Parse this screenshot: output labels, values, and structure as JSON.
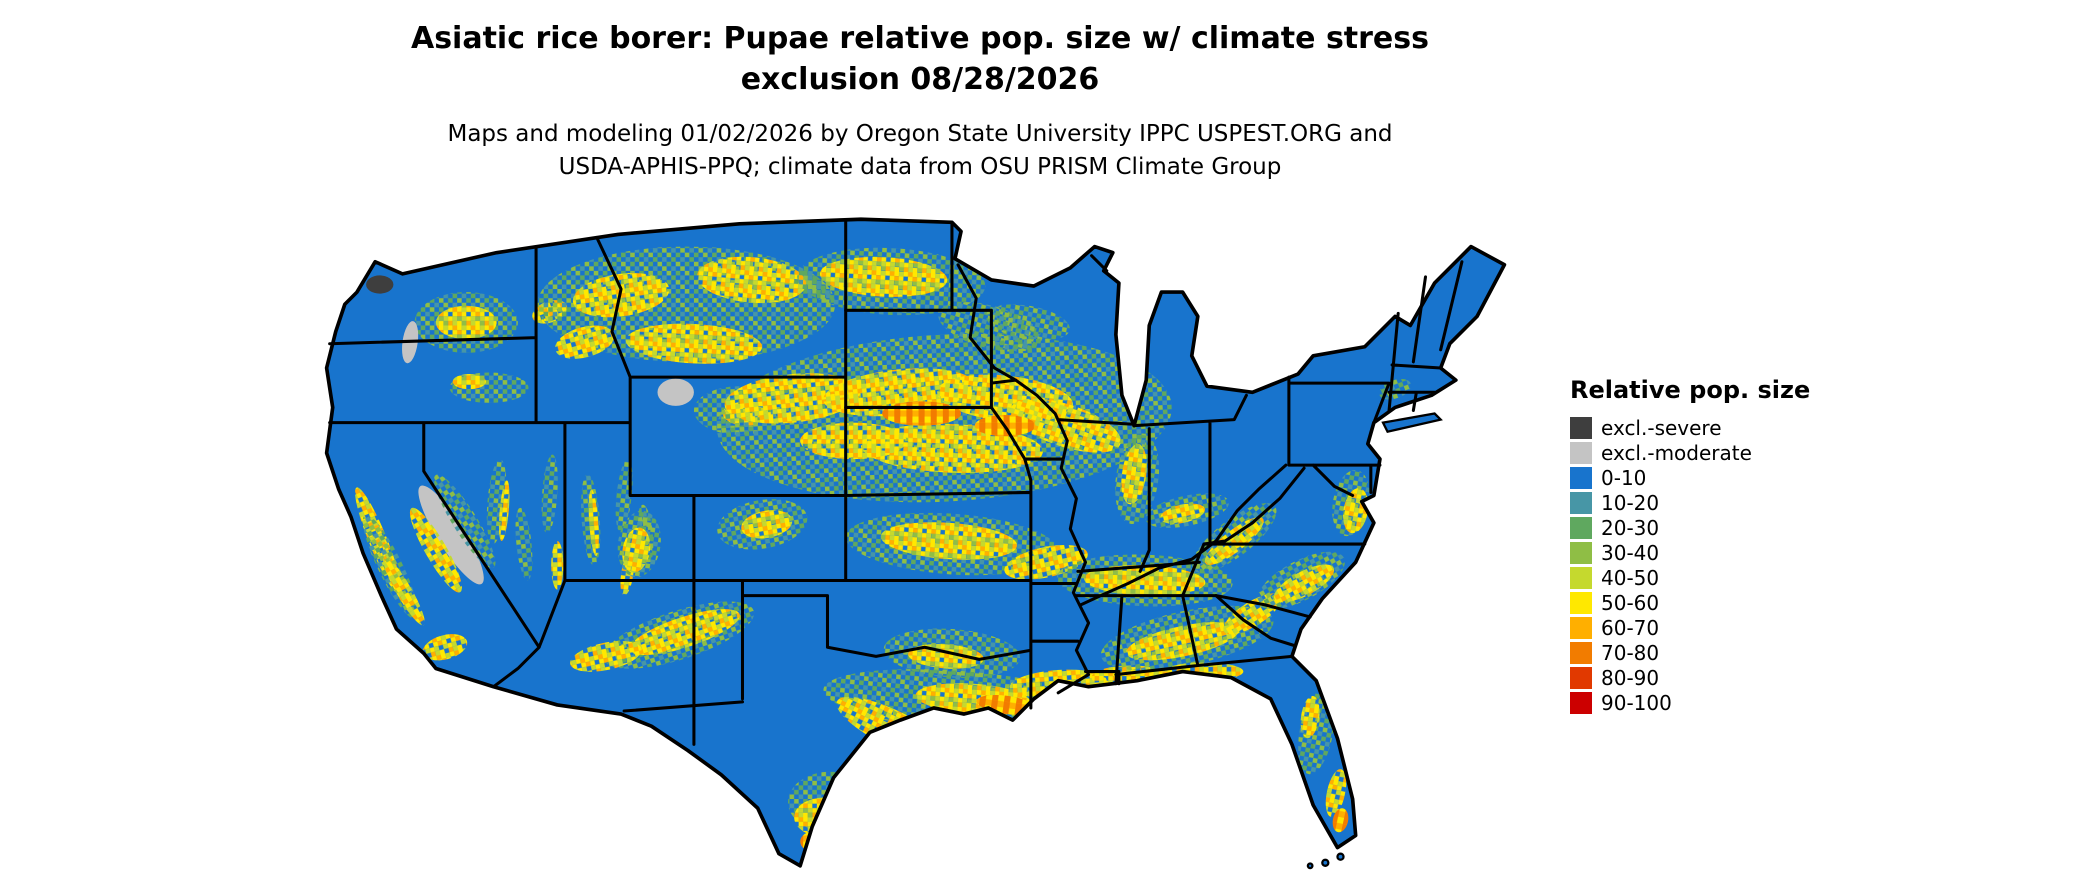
{
  "header": {
    "title_line1": "Asiatic rice borer: Pupae relative pop. size w/ climate stress",
    "title_line2": "exclusion 08/28/2026",
    "subtitle_line1": "Maps and modeling 01/02/2026 by Oregon State University IPPC USPEST.ORG and",
    "subtitle_line2": "USDA-APHIS-PPQ; climate data from OSU PRISM Climate Group"
  },
  "map": {
    "area": "Continental United States"
  },
  "legend": {
    "title": "Relative pop. size",
    "items": [
      {
        "key": "severe",
        "label": "excl.-severe",
        "color": "#3e3e3e"
      },
      {
        "key": "moderate",
        "label": "excl.-moderate",
        "color": "#c4c4c4"
      },
      {
        "key": "b0",
        "label": "0-10",
        "color": "#1874cd"
      },
      {
        "key": "b10",
        "label": "10-20",
        "color": "#4796a6"
      },
      {
        "key": "b20",
        "label": "20-30",
        "color": "#5fa85f"
      },
      {
        "key": "b30",
        "label": "30-40",
        "color": "#8fbe45"
      },
      {
        "key": "b40",
        "label": "40-50",
        "color": "#c5d92e"
      },
      {
        "key": "b50",
        "label": "50-60",
        "color": "#ffe800"
      },
      {
        "key": "b60",
        "label": "60-70",
        "color": "#ffaf00"
      },
      {
        "key": "b70",
        "label": "70-80",
        "color": "#f27c00"
      },
      {
        "key": "b80",
        "label": "80-90",
        "color": "#e13900"
      },
      {
        "key": "b90",
        "label": "90-100",
        "color": "#cc0000"
      }
    ]
  }
}
